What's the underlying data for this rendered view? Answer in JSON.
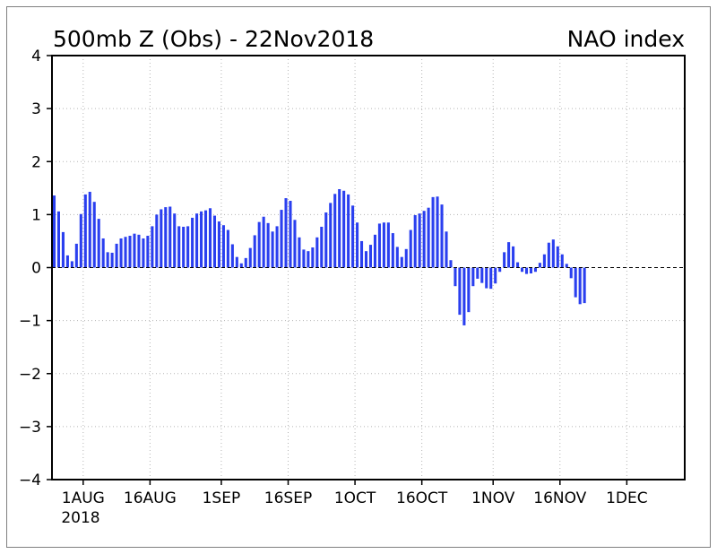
{
  "chart_data": {
    "type": "bar",
    "title_left": "500mb Z (Obs) - 22Nov2018",
    "title_right": "NAO index",
    "ylim": [
      -4,
      4
    ],
    "yticks": [
      4,
      3,
      2,
      1,
      0,
      -1,
      -2,
      -3,
      -4
    ],
    "ytick_labels": [
      "4",
      "3",
      "2",
      "1",
      "0",
      "−1",
      "−2",
      "−3",
      "−4"
    ],
    "xlim_days": [
      0,
      142
    ],
    "xticks": [
      {
        "label": "1AUG",
        "day": 7
      },
      {
        "label": "16AUG",
        "day": 22
      },
      {
        "label": "1SEP",
        "day": 38
      },
      {
        "label": "16SEP",
        "day": 53
      },
      {
        "label": "1OCT",
        "day": 68
      },
      {
        "label": "16OCT",
        "day": 83
      },
      {
        "label": "1NOV",
        "day": 99
      },
      {
        "label": "16NOV",
        "day": 114
      },
      {
        "label": "1DEC",
        "day": 129
      }
    ],
    "year_label": "2018",
    "grid": true,
    "bar_color": "#2a3fef",
    "values": [
      1.36,
      1.06,
      0.67,
      0.23,
      0.12,
      0.45,
      1.01,
      1.38,
      1.43,
      1.24,
      0.92,
      0.55,
      0.29,
      0.28,
      0.45,
      0.55,
      0.58,
      0.6,
      0.64,
      0.62,
      0.55,
      0.6,
      0.78,
      1.0,
      1.1,
      1.14,
      1.15,
      1.02,
      0.78,
      0.77,
      0.78,
      0.94,
      1.02,
      1.06,
      1.08,
      1.12,
      0.98,
      0.87,
      0.8,
      0.71,
      0.44,
      0.2,
      0.08,
      0.18,
      0.37,
      0.61,
      0.86,
      0.96,
      0.84,
      0.68,
      0.78,
      1.09,
      1.31,
      1.26,
      0.9,
      0.57,
      0.34,
      0.31,
      0.38,
      0.57,
      0.77,
      1.04,
      1.22,
      1.39,
      1.48,
      1.45,
      1.38,
      1.17,
      0.85,
      0.5,
      0.31,
      0.43,
      0.62,
      0.83,
      0.85,
      0.85,
      0.65,
      0.39,
      0.2,
      0.35,
      0.71,
      0.99,
      1.02,
      1.07,
      1.13,
      1.33,
      1.34,
      1.19,
      0.68,
      0.14,
      -0.35,
      -0.89,
      -1.09,
      -0.84,
      -0.35,
      -0.21,
      -0.29,
      -0.39,
      -0.4,
      -0.3,
      -0.08,
      0.29,
      0.48,
      0.4,
      0.1,
      -0.08,
      -0.12,
      -0.11,
      -0.08,
      0.09,
      0.25,
      0.47,
      0.53,
      0.4,
      0.25,
      0.07,
      -0.2,
      -0.56,
      -0.69,
      -0.67
    ]
  }
}
